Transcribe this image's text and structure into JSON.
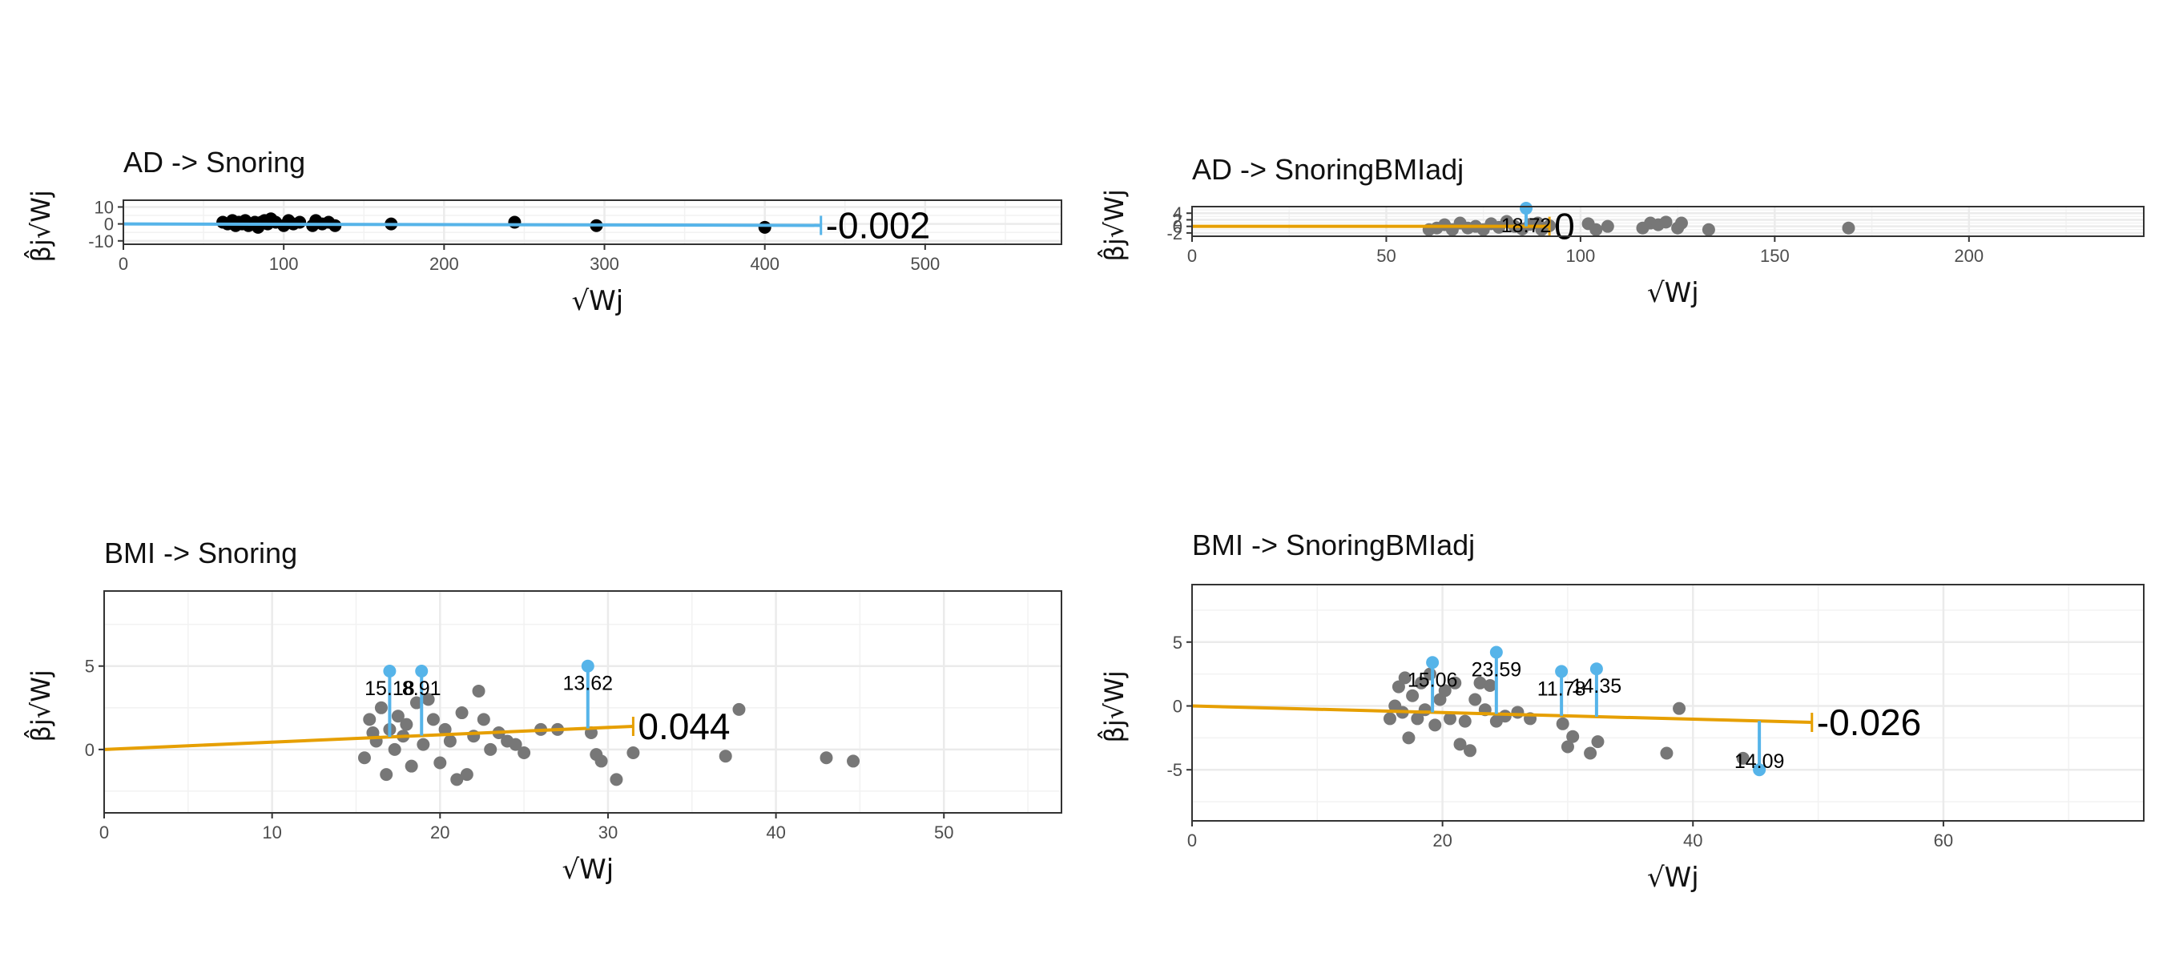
{
  "chart_data": [
    {
      "type": "scatter",
      "title": "AD -> Snoring",
      "xlabel": "√Wj",
      "ylabel": "β̂j√Wj",
      "xlim": [
        0,
        585
      ],
      "ylim": [
        -12,
        14
      ],
      "xticks": [
        0,
        100,
        200,
        300,
        400,
        500
      ],
      "yticks": [
        -10,
        0,
        10
      ],
      "ytick_labels": [
        "-10",
        "0",
        "10"
      ],
      "grid": true,
      "line_color": "#56B4E9",
      "point_color": "#000000",
      "slope": -0.002,
      "slope_label": "-0.002",
      "line_x_end": 435,
      "points": [
        [
          62,
          1
        ],
        [
          65,
          0
        ],
        [
          68,
          2
        ],
        [
          70,
          -1
        ],
        [
          72,
          1
        ],
        [
          74,
          0
        ],
        [
          76,
          2
        ],
        [
          78,
          -1
        ],
        [
          80,
          0
        ],
        [
          82,
          1
        ],
        [
          84,
          -2
        ],
        [
          86,
          1
        ],
        [
          88,
          2
        ],
        [
          90,
          0
        ],
        [
          92,
          3
        ],
        [
          95,
          1
        ],
        [
          100,
          -1
        ],
        [
          103,
          2
        ],
        [
          106,
          0
        ],
        [
          110,
          1
        ],
        [
          118,
          -1
        ],
        [
          120,
          2
        ],
        [
          124,
          0
        ],
        [
          128,
          1
        ],
        [
          132,
          -1
        ],
        [
          167,
          0
        ],
        [
          244,
          1
        ],
        [
          295,
          -1
        ],
        [
          400,
          -2
        ]
      ],
      "outliers": []
    },
    {
      "type": "scatter",
      "title": "AD -> SnoringBMIadj",
      "xlabel": "√Wj",
      "ylabel": "β̂j√Wj",
      "xlim": [
        0,
        245
      ],
      "ylim": [
        -3,
        6
      ],
      "xticks": [
        0,
        50,
        100,
        150,
        200
      ],
      "yticks": [
        -2,
        0,
        2,
        4
      ],
      "ytick_labels": [
        "-2",
        "0",
        "2",
        "4"
      ],
      "grid": true,
      "line_color": "#E69F00",
      "point_color": "#777777",
      "slope": 0,
      "slope_label": "0",
      "line_x_end": 92,
      "points": [
        [
          61,
          -1
        ],
        [
          63,
          -0.5
        ],
        [
          65,
          0.5
        ],
        [
          67,
          -1
        ],
        [
          69,
          1
        ],
        [
          71,
          -0.5
        ],
        [
          73,
          0
        ],
        [
          75,
          -1
        ],
        [
          77,
          0.8
        ],
        [
          79,
          -0.3
        ],
        [
          81,
          1.5
        ],
        [
          83,
          0
        ],
        [
          85,
          -0.8
        ],
        [
          87,
          0.6
        ],
        [
          89,
          1
        ],
        [
          90,
          -1
        ],
        [
          92,
          0.2
        ],
        [
          102,
          0.8
        ],
        [
          104,
          -1
        ],
        [
          107,
          0
        ],
        [
          116,
          -0.5
        ],
        [
          118,
          1
        ],
        [
          120,
          0.5
        ],
        [
          122,
          1.3
        ],
        [
          125,
          -0.5
        ],
        [
          126,
          1
        ],
        [
          133,
          -1
        ],
        [
          169,
          -0.5
        ]
      ],
      "outliers": [
        {
          "x": 86,
          "y": 5.5,
          "label": "18.72"
        }
      ]
    },
    {
      "type": "scatter",
      "title": "BMI -> Snoring",
      "xlabel": "√Wj",
      "ylabel": "β̂j√Wj",
      "xlim": [
        0,
        57
      ],
      "ylim": [
        -3.8,
        9.5
      ],
      "xticks": [
        0,
        10,
        20,
        30,
        40,
        50
      ],
      "yticks": [
        0,
        5
      ],
      "ytick_labels": [
        "0",
        "5"
      ],
      "grid": true,
      "line_color": "#E69F00",
      "point_color": "#777777",
      "slope": 0.044,
      "slope_label": "0.044",
      "line_x_end": 31.5,
      "points": [
        [
          15.5,
          -0.5
        ],
        [
          15.8,
          1.8
        ],
        [
          16,
          1
        ],
        [
          16.2,
          0.5
        ],
        [
          16.5,
          2.5
        ],
        [
          16.8,
          -1.5
        ],
        [
          17,
          1.2
        ],
        [
          17.3,
          0
        ],
        [
          17.5,
          2
        ],
        [
          17.8,
          0.8
        ],
        [
          18,
          1.5
        ],
        [
          18.3,
          -1
        ],
        [
          18.6,
          2.8
        ],
        [
          19,
          0.3
        ],
        [
          19.3,
          3
        ],
        [
          19.6,
          1.8
        ],
        [
          20,
          -0.8
        ],
        [
          20.3,
          1.2
        ],
        [
          20.6,
          0.5
        ],
        [
          21,
          -1.8
        ],
        [
          21.3,
          2.2
        ],
        [
          21.6,
          -1.5
        ],
        [
          22,
          0.8
        ],
        [
          22.3,
          3.5
        ],
        [
          22.6,
          1.8
        ],
        [
          23,
          0
        ],
        [
          23.5,
          1
        ],
        [
          24,
          0.5
        ],
        [
          24.5,
          0.3
        ],
        [
          25,
          -0.2
        ],
        [
          26,
          1.2
        ],
        [
          27,
          1.2
        ],
        [
          29,
          1
        ],
        [
          29.3,
          -0.3
        ],
        [
          29.6,
          -0.7
        ],
        [
          30.5,
          -1.8
        ],
        [
          31.5,
          -0.2
        ],
        [
          37,
          -0.4
        ],
        [
          37.8,
          2.4
        ],
        [
          43,
          -0.5
        ],
        [
          44.6,
          -0.7
        ]
      ],
      "outliers": [
        {
          "x": 17,
          "y": 4.7,
          "label": "15.18"
        },
        {
          "x": 18.9,
          "y": 4.7,
          "label": "8.91"
        },
        {
          "x": 28.8,
          "y": 5.0,
          "label": "13.62"
        }
      ]
    },
    {
      "type": "scatter",
      "title": "BMI -> SnoringBMIadj",
      "xlabel": "√Wj",
      "ylabel": "β̂j√Wj",
      "xlim": [
        0,
        76
      ],
      "ylim": [
        -9,
        9.5
      ],
      "xticks": [
        0,
        20,
        40,
        60
      ],
      "yticks": [
        -5,
        0,
        5
      ],
      "ytick_labels": [
        "-5",
        "0",
        "5"
      ],
      "grid": true,
      "line_color": "#E69F00",
      "point_color": "#777777",
      "slope": -0.026,
      "slope_label": "-0.026",
      "line_x_end": 49.5,
      "points": [
        [
          15.8,
          -1
        ],
        [
          16.2,
          0
        ],
        [
          16.5,
          1.5
        ],
        [
          16.8,
          -0.5
        ],
        [
          17,
          2.2
        ],
        [
          17.3,
          -2.5
        ],
        [
          17.6,
          0.8
        ],
        [
          18,
          -1
        ],
        [
          18.3,
          1.8
        ],
        [
          18.6,
          -0.3
        ],
        [
          19,
          2.5
        ],
        [
          19.4,
          -1.5
        ],
        [
          19.8,
          0.5
        ],
        [
          20.2,
          1.2
        ],
        [
          20.6,
          -1
        ],
        [
          21,
          1.8
        ],
        [
          21.4,
          -3
        ],
        [
          21.8,
          -1.2
        ],
        [
          22.2,
          -3.5
        ],
        [
          22.6,
          0.5
        ],
        [
          23,
          1.8
        ],
        [
          23.4,
          -0.3
        ],
        [
          23.8,
          1.6
        ],
        [
          24.3,
          -1.2
        ],
        [
          25,
          -0.8
        ],
        [
          26,
          -0.5
        ],
        [
          27,
          -1
        ],
        [
          29.6,
          -1.4
        ],
        [
          30,
          -3.2
        ],
        [
          30.4,
          -2.4
        ],
        [
          31.8,
          -3.7
        ],
        [
          32.4,
          -2.8
        ],
        [
          37.9,
          -3.7
        ],
        [
          38.9,
          -0.2
        ],
        [
          44,
          -4.1
        ]
      ],
      "outliers": [
        {
          "x": 19.2,
          "y": 3.4,
          "label": "15.06"
        },
        {
          "x": 24.3,
          "y": 4.2,
          "label": "23.59"
        },
        {
          "x": 29.5,
          "y": 2.7,
          "label": "11.78"
        },
        {
          "x": 32.3,
          "y": 2.9,
          "label": "14.35"
        },
        {
          "x": 45.3,
          "y": -5.0,
          "label": "14.09"
        }
      ]
    }
  ]
}
